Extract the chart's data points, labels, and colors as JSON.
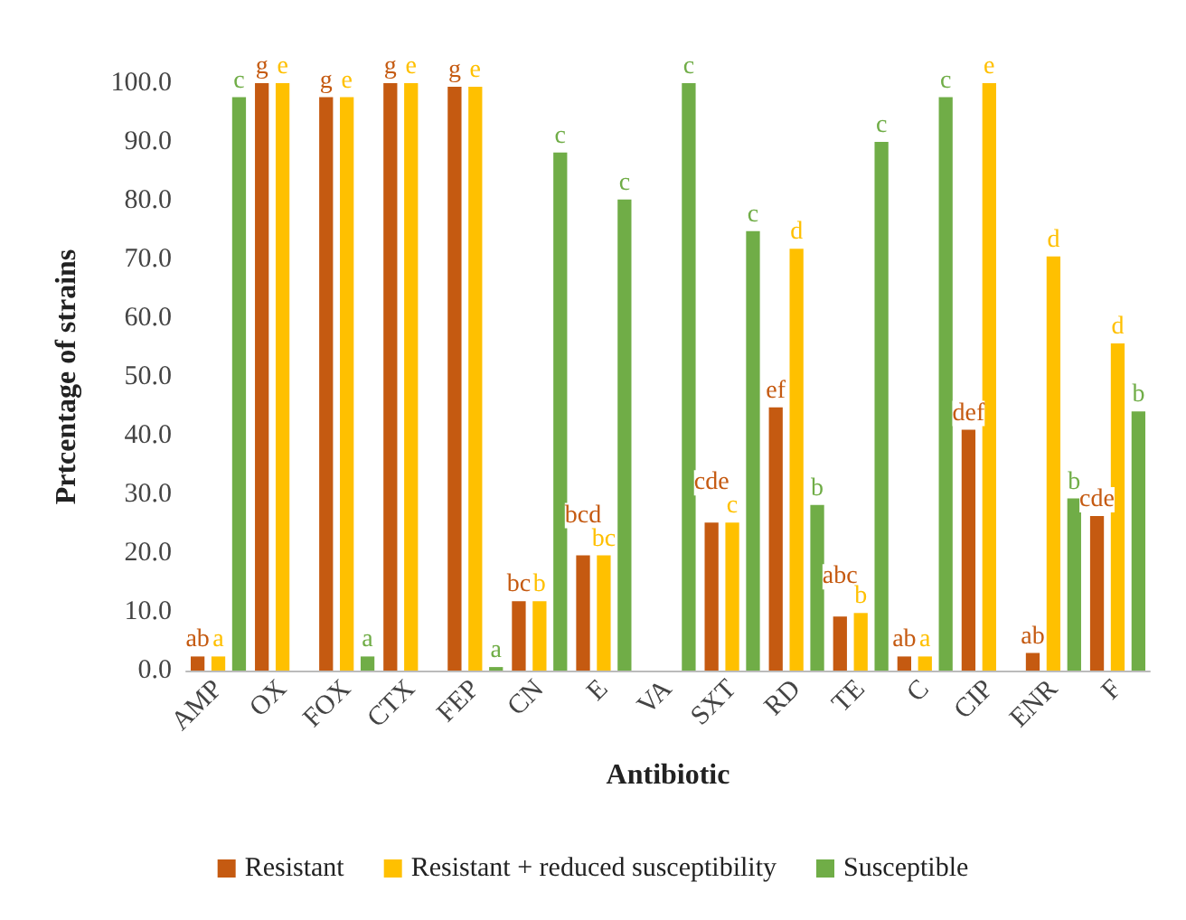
{
  "chart_data": {
    "type": "bar",
    "xlabel": "Antibiotic",
    "ylabel": "Prtcentage of strains",
    "categories": [
      "AMP",
      "OX",
      "FOX",
      "CTX",
      "FEP",
      "CN",
      "E",
      "VA",
      "SXT",
      "RD",
      "TE",
      "C",
      "CIP",
      "ENR",
      "F"
    ],
    "series": [
      {
        "name": "Resistant",
        "color": "#c55a11",
        "values": [
          2.4,
          100,
          97.6,
          100,
          99.4,
          11.8,
          19.6,
          0,
          25.2,
          44.8,
          9.2,
          2.4,
          41.0,
          3.0,
          26.3
        ],
        "value_labels": [
          "ab",
          "g",
          "g",
          "g",
          "g",
          "bc",
          "bcd",
          null,
          "cde",
          "ef",
          "abc",
          "ab",
          "def",
          "ab",
          "cde"
        ]
      },
      {
        "name": "Resistant + reduced susceptibility",
        "color": "#ffc000",
        "values": [
          2.4,
          100,
          97.6,
          100,
          99.4,
          11.8,
          19.6,
          0,
          25.2,
          71.8,
          9.8,
          2.4,
          100,
          70.5,
          55.7
        ],
        "value_labels": [
          "a",
          "e",
          "e",
          "e",
          "e",
          "b",
          "bc",
          null,
          "c",
          "d",
          "b",
          "a",
          "e",
          "d",
          "d"
        ]
      },
      {
        "name": "Susceptible",
        "color": "#70ad47",
        "values": [
          97.6,
          0,
          2.4,
          0,
          0.6,
          88.2,
          80.2,
          100,
          74.8,
          28.2,
          90.0,
          97.6,
          0,
          29.3,
          44.1
        ],
        "value_labels": [
          "c",
          null,
          "a",
          null,
          "a",
          "c",
          "c",
          "c",
          "c",
          "b",
          "c",
          "c",
          null,
          "b",
          "b"
        ]
      }
    ],
    "ylim": [
      0,
      100
    ],
    "yticks": [
      {
        "value": 0,
        "label": "0.0"
      },
      {
        "value": 10,
        "label": "10.0"
      },
      {
        "value": 20,
        "label": "20.0"
      },
      {
        "value": 30,
        "label": "30.0"
      },
      {
        "value": 40,
        "label": "40.0"
      },
      {
        "value": 50,
        "label": "50.0"
      },
      {
        "value": 60,
        "label": "60.0"
      },
      {
        "value": 70,
        "label": "70.0"
      },
      {
        "value": 80,
        "label": "80.0"
      },
      {
        "value": 90,
        "label": "90.0"
      },
      {
        "value": 100,
        "label": "100.0"
      }
    ],
    "grid": false,
    "legend": "bottom"
  }
}
